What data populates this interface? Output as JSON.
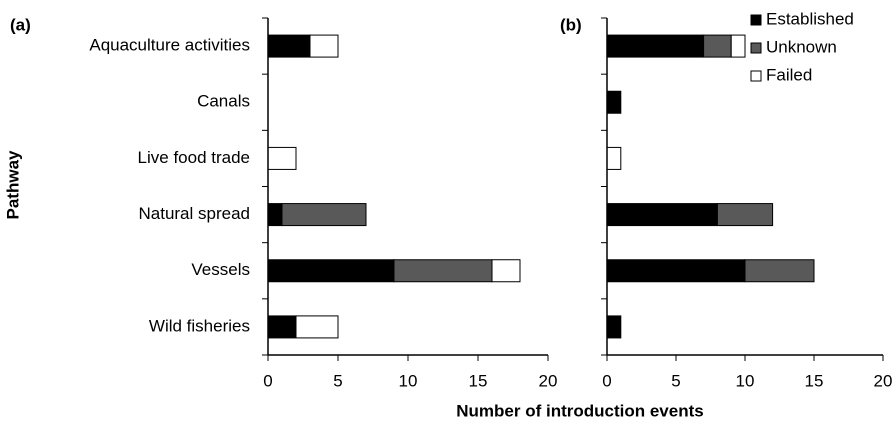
{
  "chart_data": [
    {
      "type": "stacked-bar-horizontal",
      "title": "(a)",
      "ylabel": "Pathway",
      "xlabel": "Number of introduction events",
      "categories": [
        "Aquaculture activities",
        "Canals",
        "Live food trade",
        "Natural spread",
        "Vessels",
        "Wild fisheries"
      ],
      "series": [
        {
          "name": "Established",
          "color": "#000000",
          "values": [
            3,
            0,
            0,
            1,
            9,
            2
          ]
        },
        {
          "name": "Unknown",
          "color": "#595959",
          "values": [
            0,
            0,
            0,
            6,
            7,
            0
          ]
        },
        {
          "name": "Failed",
          "color": "#ffffff",
          "values": [
            2,
            0,
            2,
            0,
            2,
            3
          ]
        }
      ],
      "xlim": [
        0,
        20
      ],
      "xticks": [
        0,
        5,
        10,
        15,
        20
      ]
    },
    {
      "type": "stacked-bar-horizontal",
      "title": "(b)",
      "categories": [
        null,
        null,
        null,
        null,
        null,
        null
      ],
      "series": [
        {
          "color": "#000000",
          "values": [
            7,
            1,
            0,
            8,
            10,
            1
          ]
        },
        {
          "color": "#595959",
          "values": [
            2,
            0,
            0,
            4,
            5,
            0
          ]
        },
        {
          "color": "#ffffff",
          "values": [
            1,
            0,
            1,
            0,
            0,
            0
          ]
        }
      ],
      "xlim": [
        0,
        20
      ],
      "xticks": [
        0,
        5,
        10,
        15,
        20
      ],
      "legend": "top-right"
    }
  ]
}
